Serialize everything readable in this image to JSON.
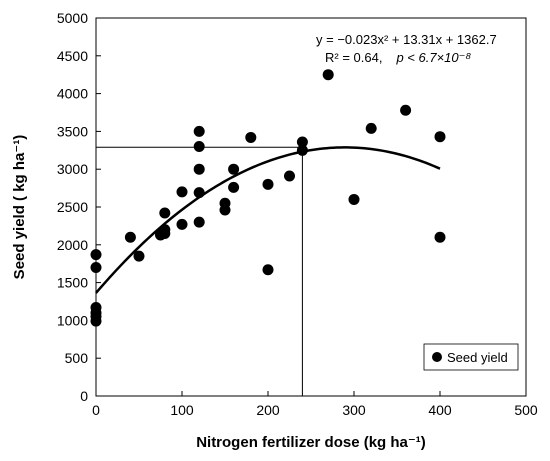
{
  "chart_data": {
    "type": "scatter",
    "xlabel": "Nitrogen fertilizer dose (kg ha⁻¹)",
    "ylabel": "Seed yield ( kg ha⁻¹)",
    "xlim": [
      0,
      500
    ],
    "ylim": [
      0,
      5000
    ],
    "xticks": [
      0,
      100,
      200,
      300,
      400,
      500
    ],
    "yticks": [
      0,
      500,
      1000,
      1500,
      2000,
      2500,
      3000,
      3500,
      4000,
      4500,
      5000
    ],
    "grid": false,
    "legend": {
      "position": "bottom-right",
      "entries": [
        "Seed yield"
      ]
    },
    "series": [
      {
        "name": "Seed yield",
        "marker": "circle",
        "color": "#000000",
        "points": [
          [
            0,
            1870
          ],
          [
            0,
            1700
          ],
          [
            0,
            1170
          ],
          [
            0,
            1100
          ],
          [
            0,
            1050
          ],
          [
            0,
            990
          ],
          [
            40,
            2100
          ],
          [
            50,
            1850
          ],
          [
            75,
            2130
          ],
          [
            80,
            2200
          ],
          [
            80,
            2150
          ],
          [
            80,
            2420
          ],
          [
            100,
            2270
          ],
          [
            100,
            2700
          ],
          [
            120,
            3500
          ],
          [
            120,
            3300
          ],
          [
            120,
            3000
          ],
          [
            120,
            2690
          ],
          [
            120,
            2300
          ],
          [
            150,
            2550
          ],
          [
            150,
            2460
          ],
          [
            160,
            3000
          ],
          [
            160,
            2760
          ],
          [
            180,
            3420
          ],
          [
            200,
            2800
          ],
          [
            200,
            1670
          ],
          [
            225,
            2910
          ],
          [
            240,
            3360
          ],
          [
            240,
            3250
          ],
          [
            270,
            4250
          ],
          [
            300,
            2600
          ],
          [
            320,
            3540
          ],
          [
            360,
            3780
          ],
          [
            400,
            3430
          ],
          [
            400,
            2100
          ]
        ]
      }
    ],
    "fit": {
      "type": "quadratic",
      "a": -0.023,
      "b": 13.31,
      "c": 1362.7,
      "x_range": [
        0,
        400
      ],
      "color": "#000000"
    },
    "reference_lines": {
      "vertical_x": 240,
      "horizontal_y": 3290
    },
    "annotation": {
      "equation": "y = −0.023x² + 13.31x + 1362.7",
      "stats_prefix": "R² = 0.64,",
      "stats_p": "p < 6.7×10⁻⁸"
    }
  }
}
